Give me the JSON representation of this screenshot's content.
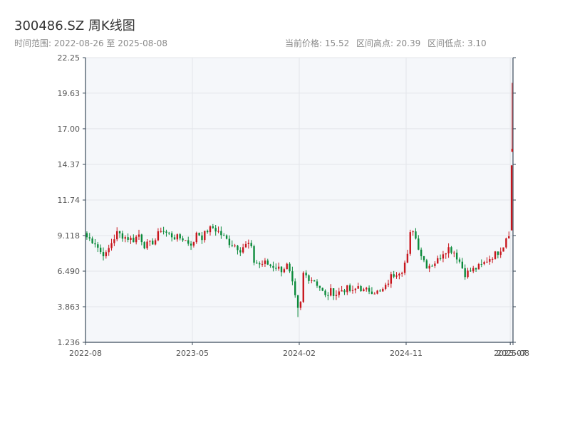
{
  "header": {
    "title": "300486.SZ 周K线图",
    "range": "时间范围: 2022-08-26 至 2025-08-08",
    "current_price": "当前价格: 15.52",
    "high": "区间高点: 20.39",
    "low": "区间低点: 3.10"
  },
  "colors": {
    "up": "#c8161d",
    "down": "#0a8a3a",
    "plot_bg": "#f5f7fa",
    "grid": "#e3e6ea",
    "axis": "#3a4a5a"
  },
  "chart_data": {
    "type": "candlestick",
    "title": "300486.SZ 周K线图",
    "ylim": [
      1.236,
      22.25
    ],
    "yticks": [
      "1.236",
      "3.863",
      "6.490",
      "9.118",
      "11.74",
      "14.37",
      "17.00",
      "19.63",
      "22.25"
    ],
    "ytick_values": [
      1.236,
      3.863,
      6.49,
      9.118,
      11.74,
      14.37,
      17.0,
      19.63,
      22.25
    ],
    "xticks": [
      "2022-08",
      "2023-05",
      "2024-02",
      "2024-11",
      "2025-07",
      "2025-08"
    ],
    "xtick_positions": [
      0,
      39,
      78,
      117,
      155,
      156
    ],
    "bar_count": 156,
    "grid": true,
    "legend": "none",
    "anchors": [
      [
        0,
        9.0
      ],
      [
        3,
        8.6
      ],
      [
        5,
        7.9
      ],
      [
        7,
        7.7
      ],
      [
        9,
        8.6
      ],
      [
        11,
        9.3
      ],
      [
        14,
        9.0
      ],
      [
        17,
        8.8
      ],
      [
        19,
        9.2
      ],
      [
        21,
        8.4
      ],
      [
        23,
        8.5
      ],
      [
        25,
        8.8
      ],
      [
        27,
        9.6
      ],
      [
        29,
        9.3
      ],
      [
        32,
        9.0
      ],
      [
        35,
        8.9
      ],
      [
        37,
        8.6
      ],
      [
        39,
        8.5
      ],
      [
        40,
        9.4
      ],
      [
        42,
        9.0
      ],
      [
        44,
        9.5
      ],
      [
        46,
        9.7
      ],
      [
        48,
        9.4
      ],
      [
        50,
        9.0
      ],
      [
        52,
        8.6
      ],
      [
        54,
        8.4
      ],
      [
        56,
        8.1
      ],
      [
        57,
        8.3
      ],
      [
        59,
        8.5
      ],
      [
        60,
        8.1
      ],
      [
        61,
        7.2
      ],
      [
        63,
        7.0
      ],
      [
        65,
        7.1
      ],
      [
        67,
        6.9
      ],
      [
        69,
        6.8
      ],
      [
        71,
        6.6
      ],
      [
        73,
        6.9
      ],
      [
        74,
        6.3
      ],
      [
        75,
        5.5
      ],
      [
        76,
        4.5
      ],
      [
        77,
        3.6
      ],
      [
        78,
        4.1
      ],
      [
        79,
        6.3
      ],
      [
        81,
        6.0
      ],
      [
        83,
        5.8
      ],
      [
        85,
        5.3
      ],
      [
        87,
        4.6
      ],
      [
        89,
        5.0
      ],
      [
        91,
        4.8
      ],
      [
        93,
        5.1
      ],
      [
        95,
        5.2
      ],
      [
        97,
        4.9
      ],
      [
        99,
        5.4
      ],
      [
        101,
        5.0
      ],
      [
        103,
        5.1
      ],
      [
        105,
        5.0
      ],
      [
        107,
        4.9
      ],
      [
        109,
        5.3
      ],
      [
        111,
        6.1
      ],
      [
        113,
        6.4
      ],
      [
        115,
        6.6
      ],
      [
        117,
        7.6
      ],
      [
        118,
        9.2
      ],
      [
        119,
        9.6
      ],
      [
        120,
        8.9
      ],
      [
        122,
        7.7
      ],
      [
        124,
        6.9
      ],
      [
        126,
        7.0
      ],
      [
        128,
        7.3
      ],
      [
        130,
        7.9
      ],
      [
        132,
        8.2
      ],
      [
        134,
        7.9
      ],
      [
        136,
        7.2
      ],
      [
        138,
        6.3
      ],
      [
        140,
        6.5
      ],
      [
        142,
        6.7
      ],
      [
        144,
        6.9
      ],
      [
        146,
        7.3
      ],
      [
        148,
        7.6
      ],
      [
        150,
        7.9
      ],
      [
        152,
        8.4
      ],
      [
        153,
        9.0
      ],
      [
        154,
        9.3
      ],
      [
        155,
        14.3
      ],
      [
        156,
        15.52
      ]
    ],
    "tail_candles": [
      {
        "index": 155,
        "open": 9.5,
        "close": 14.3,
        "high": 14.3,
        "low": 9.5
      },
      {
        "index": 156,
        "open": 15.3,
        "close": 15.52,
        "high": 20.39,
        "low": 15.3
      }
    ],
    "low_candle": {
      "index": 77,
      "low": 3.1
    }
  }
}
